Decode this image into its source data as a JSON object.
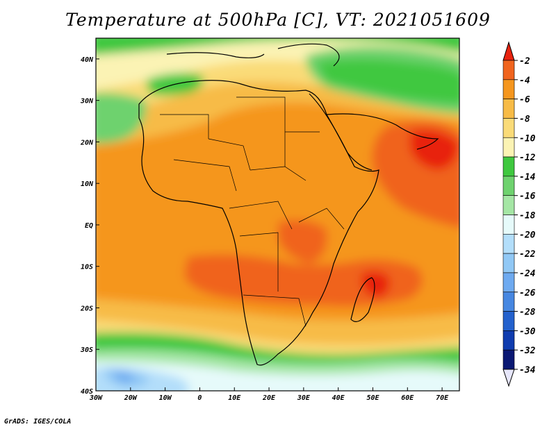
{
  "title": "Temperature at 500hPa [C], VT: 2021051609",
  "credit": "GrADS: IGES/COLA",
  "map": {
    "lat_labels": [
      "40N",
      "30N",
      "20N",
      "10N",
      "EQ",
      "10S",
      "20S",
      "30S",
      "40S"
    ],
    "lon_labels": [
      "30W",
      "20W",
      "10W",
      "0",
      "10E",
      "20E",
      "30E",
      "40E",
      "50E",
      "60E",
      "70E"
    ],
    "lat_range": [
      -40,
      45
    ],
    "lon_range": [
      -30,
      75
    ]
  },
  "colorbar": {
    "levels": [
      "-2",
      "-4",
      "-6",
      "-8",
      "-10",
      "-12",
      "-14",
      "-16",
      "-18",
      "-20",
      "-22",
      "-24",
      "-26",
      "-28",
      "-30",
      "-32",
      "-34"
    ],
    "colors": [
      "#e8230f",
      "#f0641e",
      "#f5961e",
      "#f7bb46",
      "#fadb78",
      "#fbf3b4",
      "#3fc83f",
      "#6ed26e",
      "#a5e6a5",
      "#e6fafa",
      "#b3defa",
      "#91c8f5",
      "#6eaaf0",
      "#4687e1",
      "#2361cd",
      "#0f3caf",
      "#0a1873",
      "#e6e6fa"
    ]
  }
}
